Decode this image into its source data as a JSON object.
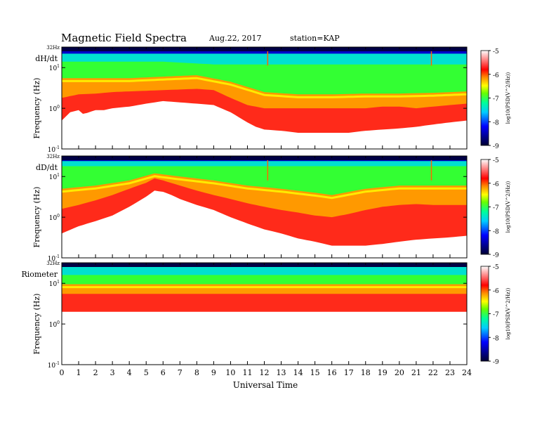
{
  "header": {
    "title": "Magnetic  Field  Spectra",
    "date": "Aug.22, 2017",
    "station": "station=KAP"
  },
  "chart_data": [
    {
      "type": "heatmap",
      "panel_label": "dH/dt",
      "top_label": "32Hz",
      "ylabel": "Frequency  (Hz)",
      "y_scale": "log",
      "ylim": [
        0.1,
        32
      ],
      "y_tick_labels": [
        "10-1",
        "100",
        "101"
      ],
      "x_ticks": [
        0,
        1,
        2,
        3,
        4,
        5,
        6,
        7,
        8,
        9,
        10,
        11,
        12,
        13,
        14,
        15,
        16,
        17,
        18,
        19,
        20,
        21,
        22,
        23,
        24
      ],
      "xlim": [
        0,
        24
      ],
      "lower_boundary_hz": [
        [
          0,
          0.5
        ],
        [
          0.5,
          0.8
        ],
        [
          1,
          0.9
        ],
        [
          1.3,
          0.7
        ],
        [
          1.6,
          0.8
        ],
        [
          2,
          0.9
        ],
        [
          2.5,
          0.9
        ],
        [
          3,
          1.0
        ],
        [
          4,
          1.1
        ],
        [
          5,
          1.3
        ],
        [
          5.5,
          1.4
        ],
        [
          6,
          1.5
        ],
        [
          7,
          1.4
        ],
        [
          8,
          1.3
        ],
        [
          9,
          1.2
        ],
        [
          10,
          0.8
        ],
        [
          10.5,
          0.6
        ],
        [
          11,
          0.45
        ],
        [
          11.5,
          0.35
        ],
        [
          12,
          0.3
        ],
        [
          13,
          0.28
        ],
        [
          14,
          0.25
        ],
        [
          15,
          0.25
        ],
        [
          16,
          0.25
        ],
        [
          17,
          0.25
        ],
        [
          18,
          0.28
        ],
        [
          19,
          0.3
        ],
        [
          20,
          0.32
        ],
        [
          21,
          0.35
        ],
        [
          22,
          0.4
        ],
        [
          23,
          0.45
        ],
        [
          24,
          0.5
        ]
      ],
      "orange_boundary_hz": [
        [
          0,
          1.8
        ],
        [
          1,
          2.2
        ],
        [
          2,
          2.3
        ],
        [
          3,
          2.5
        ],
        [
          4,
          2.6
        ],
        [
          5,
          2.7
        ],
        [
          6,
          2.8
        ],
        [
          7,
          2.9
        ],
        [
          8,
          3.0
        ],
        [
          9,
          2.8
        ],
        [
          10,
          1.8
        ],
        [
          11,
          1.2
        ],
        [
          12,
          1.0
        ],
        [
          13,
          1.0
        ],
        [
          14,
          1.0
        ],
        [
          15,
          1.0
        ],
        [
          16,
          1.0
        ],
        [
          17,
          1.0
        ],
        [
          18,
          1.0
        ],
        [
          19,
          1.1
        ],
        [
          20,
          1.1
        ],
        [
          21,
          1.0
        ],
        [
          22,
          1.1
        ],
        [
          23,
          1.2
        ],
        [
          24,
          1.3
        ]
      ],
      "green_boundary_hz": [
        [
          0,
          5.5
        ],
        [
          2,
          5.5
        ],
        [
          4,
          5.5
        ],
        [
          6,
          6
        ],
        [
          8,
          6.5
        ],
        [
          10,
          4.5
        ],
        [
          12,
          2.5
        ],
        [
          14,
          2.2
        ],
        [
          16,
          2.2
        ],
        [
          18,
          2.3
        ],
        [
          20,
          2.3
        ],
        [
          22,
          2.4
        ],
        [
          24,
          2.6
        ]
      ],
      "cyan_boundary_hz": [
        [
          0,
          14
        ],
        [
          6,
          14
        ],
        [
          9,
          12
        ],
        [
          12,
          12
        ],
        [
          18,
          12
        ],
        [
          24,
          12
        ]
      ],
      "blue_boundary_hz": [
        [
          0,
          22
        ],
        [
          24,
          22
        ]
      ],
      "spikes": [
        [
          12.2,
          28
        ],
        [
          21.9,
          28
        ]
      ],
      "colorbar": {
        "ticks": [
          "-5",
          "-6",
          "-7",
          "-8",
          "-9"
        ],
        "label": "log10(PSD(V^2/Hz))"
      }
    },
    {
      "type": "heatmap",
      "panel_label": "dD/dt",
      "top_label": "32Hz",
      "ylabel": "Frequency  (Hz)",
      "y_scale": "log",
      "ylim": [
        0.1,
        32
      ],
      "y_tick_labels": [
        "10-1",
        "100",
        "101"
      ],
      "x_ticks": [
        0,
        1,
        2,
        3,
        4,
        5,
        6,
        7,
        8,
        9,
        10,
        11,
        12,
        13,
        14,
        15,
        16,
        17,
        18,
        19,
        20,
        21,
        22,
        23,
        24
      ],
      "xlim": [
        0,
        24
      ],
      "lower_boundary_hz": [
        [
          0,
          0.4
        ],
        [
          1,
          0.6
        ],
        [
          2,
          0.8
        ],
        [
          3,
          1.1
        ],
        [
          4,
          1.8
        ],
        [
          5,
          3.2
        ],
        [
          5.5,
          4.5
        ],
        [
          6,
          4.2
        ],
        [
          6.5,
          3.5
        ],
        [
          7,
          2.8
        ],
        [
          8,
          2.0
        ],
        [
          9,
          1.5
        ],
        [
          10,
          1.0
        ],
        [
          11,
          0.7
        ],
        [
          12,
          0.5
        ],
        [
          13,
          0.4
        ],
        [
          14,
          0.3
        ],
        [
          15,
          0.25
        ],
        [
          16,
          0.2
        ],
        [
          17,
          0.2
        ],
        [
          18,
          0.2
        ],
        [
          19,
          0.22
        ],
        [
          20,
          0.25
        ],
        [
          21,
          0.28
        ],
        [
          22,
          0.3
        ],
        [
          23,
          0.32
        ],
        [
          24,
          0.35
        ]
      ],
      "orange_boundary_hz": [
        [
          0,
          1.6
        ],
        [
          1,
          2.0
        ],
        [
          2,
          2.6
        ],
        [
          3,
          3.5
        ],
        [
          4,
          5.0
        ],
        [
          5,
          7.0
        ],
        [
          5.5,
          9.0
        ],
        [
          6,
          8.0
        ],
        [
          7,
          6.0
        ],
        [
          8,
          4.5
        ],
        [
          9,
          3.5
        ],
        [
          10,
          2.8
        ],
        [
          11,
          2.2
        ],
        [
          12,
          1.8
        ],
        [
          13,
          1.5
        ],
        [
          14,
          1.3
        ],
        [
          15,
          1.1
        ],
        [
          16,
          1.0
        ],
        [
          17,
          1.2
        ],
        [
          18,
          1.5
        ],
        [
          19,
          1.8
        ],
        [
          20,
          2.0
        ],
        [
          21,
          2.1
        ],
        [
          22,
          2.0
        ],
        [
          23,
          2.0
        ],
        [
          24,
          2.0
        ]
      ],
      "green_boundary_hz": [
        [
          0,
          5
        ],
        [
          2,
          6
        ],
        [
          4,
          8
        ],
        [
          5.5,
          12
        ],
        [
          7,
          10
        ],
        [
          9,
          8
        ],
        [
          11,
          6
        ],
        [
          13,
          5
        ],
        [
          15,
          4
        ],
        [
          16,
          3.5
        ],
        [
          18,
          5
        ],
        [
          20,
          6
        ],
        [
          22,
          6
        ],
        [
          24,
          6
        ]
      ],
      "cyan_boundary_hz": [
        [
          0,
          18
        ],
        [
          24,
          18
        ]
      ],
      "blue_boundary_hz": [
        [
          0,
          24
        ],
        [
          24,
          24
        ]
      ],
      "spikes": [
        [
          12.2,
          20
        ],
        [
          21.9,
          20
        ]
      ],
      "colorbar": {
        "ticks": [
          "-5",
          "-6",
          "-7",
          "-8",
          "-9"
        ],
        "label": "log10(PSD(V^2/Hz))"
      }
    },
    {
      "type": "heatmap",
      "panel_label": "Riometer",
      "top_label": "32Hz",
      "ylabel": "Frequency  (Hz)",
      "y_scale": "log",
      "ylim": [
        0.1,
        32
      ],
      "y_tick_labels": [
        "10-1",
        "100",
        "101"
      ],
      "x_ticks": [
        0,
        1,
        2,
        3,
        4,
        5,
        6,
        7,
        8,
        9,
        10,
        11,
        12,
        13,
        14,
        15,
        16,
        17,
        18,
        19,
        20,
        21,
        22,
        23,
        24
      ],
      "xlim": [
        0,
        24
      ],
      "xlabel": "Universal Time",
      "lower_boundary_hz": [
        [
          0,
          2
        ],
        [
          24,
          2
        ]
      ],
      "orange_boundary_hz": [
        [
          0,
          5.5
        ],
        [
          24,
          5.5
        ]
      ],
      "green_boundary_hz": [
        [
          0,
          9.5
        ],
        [
          24,
          9.5
        ]
      ],
      "cyan_boundary_hz": [
        [
          0,
          16
        ],
        [
          24,
          16
        ]
      ],
      "blue_boundary_hz": [
        [
          0,
          30
        ],
        [
          24,
          30
        ]
      ],
      "spikes": [],
      "colorbar": {
        "ticks": [
          "-5",
          "-6",
          "-7",
          "-8",
          "-9"
        ],
        "label": "log10(PSD(V^2/Hz))"
      }
    }
  ]
}
